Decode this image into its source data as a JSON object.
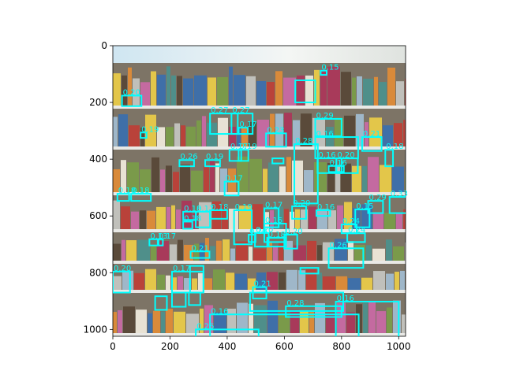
{
  "chart_data": {
    "type": "image-detections",
    "title": "",
    "xlabel": "",
    "ylabel": "",
    "image": {
      "width": 1024,
      "height": 1024,
      "subject": "supermarket shelves with packaged products"
    },
    "xlim": [
      0,
      1024
    ],
    "ylim": [
      1024,
      0
    ],
    "x_ticks": [
      0,
      200,
      400,
      600,
      800,
      1000
    ],
    "y_ticks": [
      0,
      200,
      400,
      600,
      800,
      1000
    ],
    "box_color": "#00ffff",
    "boxes": [
      {
        "x1": 638,
        "y1": 122,
        "x2": 708,
        "y2": 200,
        "label": ""
      },
      {
        "x1": 727,
        "y1": 88,
        "x2": 748,
        "y2": 103,
        "label": "0.15"
      },
      {
        "x1": 32,
        "y1": 176,
        "x2": 100,
        "y2": 213,
        "label": "0.20"
      },
      {
        "x1": 340,
        "y1": 239,
        "x2": 437,
        "y2": 311,
        "label": "0.27"
      },
      {
        "x1": 415,
        "y1": 239,
        "x2": 489,
        "y2": 311,
        "label": "0.27"
      },
      {
        "x1": 97,
        "y1": 306,
        "x2": 118,
        "y2": 325,
        "label": "0.19"
      },
      {
        "x1": 708,
        "y1": 258,
        "x2": 800,
        "y2": 319,
        "label": "0.29"
      },
      {
        "x1": 440,
        "y1": 289,
        "x2": 472,
        "y2": 311,
        "label": "0.17"
      },
      {
        "x1": 536,
        "y1": 309,
        "x2": 606,
        "y2": 356,
        "label": "0.23"
      },
      {
        "x1": 708,
        "y1": 322,
        "x2": 858,
        "y2": 397,
        "label": "0.16"
      },
      {
        "x1": 872,
        "y1": 322,
        "x2": 940,
        "y2": 371,
        "label": "0.21"
      },
      {
        "x1": 408,
        "y1": 367,
        "x2": 449,
        "y2": 406,
        "label": "0.17"
      },
      {
        "x1": 440,
        "y1": 367,
        "x2": 474,
        "y2": 406,
        "label": "0.19"
      },
      {
        "x1": 635,
        "y1": 347,
        "x2": 717,
        "y2": 556,
        "label": "0.28"
      },
      {
        "x1": 953,
        "y1": 367,
        "x2": 980,
        "y2": 425,
        "label": "0.18"
      },
      {
        "x1": 233,
        "y1": 403,
        "x2": 284,
        "y2": 425,
        "label": "0.26"
      },
      {
        "x1": 323,
        "y1": 403,
        "x2": 375,
        "y2": 425,
        "label": "0.19"
      },
      {
        "x1": 558,
        "y1": 397,
        "x2": 597,
        "y2": 415,
        "label": ""
      },
      {
        "x1": 716,
        "y1": 397,
        "x2": 800,
        "y2": 449,
        "label": "0.16"
      },
      {
        "x1": 782,
        "y1": 397,
        "x2": 857,
        "y2": 449,
        "label": "0.20"
      },
      {
        "x1": 755,
        "y1": 424,
        "x2": 808,
        "y2": 445,
        "label": "0.16"
      },
      {
        "x1": 391,
        "y1": 479,
        "x2": 440,
        "y2": 528,
        "label": "0.17"
      },
      {
        "x1": 16,
        "y1": 522,
        "x2": 57,
        "y2": 547,
        "label": "0.18"
      },
      {
        "x1": 64,
        "y1": 522,
        "x2": 133,
        "y2": 547,
        "label": "0.18"
      },
      {
        "x1": 968,
        "y1": 533,
        "x2": 1030,
        "y2": 590,
        "label": "0.33"
      },
      {
        "x1": 893,
        "y1": 547,
        "x2": 945,
        "y2": 590,
        "label": "0.29"
      },
      {
        "x1": 246,
        "y1": 585,
        "x2": 291,
        "y2": 614,
        "label": "0.18"
      },
      {
        "x1": 290,
        "y1": 585,
        "x2": 340,
        "y2": 640,
        "label": "0.17"
      },
      {
        "x1": 340,
        "y1": 580,
        "x2": 400,
        "y2": 610,
        "label": "0.18"
      },
      {
        "x1": 424,
        "y1": 580,
        "x2": 486,
        "y2": 700,
        "label": "0.19"
      },
      {
        "x1": 530,
        "y1": 573,
        "x2": 580,
        "y2": 640,
        "label": "0.17"
      },
      {
        "x1": 627,
        "y1": 566,
        "x2": 676,
        "y2": 610,
        "label": "0.20"
      },
      {
        "x1": 712,
        "y1": 580,
        "x2": 760,
        "y2": 600,
        "label": "0.16"
      },
      {
        "x1": 848,
        "y1": 577,
        "x2": 898,
        "y2": 640,
        "label": "0.15"
      },
      {
        "x1": 246,
        "y1": 620,
        "x2": 278,
        "y2": 645,
        "label": "0.18"
      },
      {
        "x1": 475,
        "y1": 666,
        "x2": 499,
        "y2": 692,
        "label": "0.20"
      },
      {
        "x1": 497,
        "y1": 660,
        "x2": 545,
        "y2": 708,
        "label": "0.20"
      },
      {
        "x1": 530,
        "y1": 627,
        "x2": 606,
        "y2": 692,
        "label": "0.15"
      },
      {
        "x1": 540,
        "y1": 677,
        "x2": 606,
        "y2": 708,
        "label": "0.18"
      },
      {
        "x1": 600,
        "y1": 666,
        "x2": 645,
        "y2": 715,
        "label": "0.20"
      },
      {
        "x1": 800,
        "y1": 630,
        "x2": 853,
        "y2": 661,
        "label": "0.24"
      },
      {
        "x1": 820,
        "y1": 661,
        "x2": 882,
        "y2": 692,
        "label": "0.24"
      },
      {
        "x1": 128,
        "y1": 682,
        "x2": 160,
        "y2": 704,
        "label": "0.13"
      },
      {
        "x1": 157,
        "y1": 682,
        "x2": 175,
        "y2": 704,
        "label": "0.17"
      },
      {
        "x1": 272,
        "y1": 725,
        "x2": 338,
        "y2": 748,
        "label": "0.21"
      },
      {
        "x1": 755,
        "y1": 714,
        "x2": 876,
        "y2": 783,
        "label": "0.26"
      },
      {
        "x1": 656,
        "y1": 783,
        "x2": 719,
        "y2": 803,
        "label": ""
      },
      {
        "x1": 0,
        "y1": 796,
        "x2": 60,
        "y2": 870,
        "label": "0.20"
      },
      {
        "x1": 207,
        "y1": 796,
        "x2": 317,
        "y2": 870,
        "label": "0.17"
      },
      {
        "x1": 270,
        "y1": 776,
        "x2": 317,
        "y2": 870,
        "label": ""
      },
      {
        "x1": 490,
        "y1": 851,
        "x2": 537,
        "y2": 891,
        "label": "0.21"
      },
      {
        "x1": 480,
        "y1": 870,
        "x2": 806,
        "y2": 935,
        "label": ""
      },
      {
        "x1": 148,
        "y1": 883,
        "x2": 189,
        "y2": 931,
        "label": ""
      },
      {
        "x1": 207,
        "y1": 870,
        "x2": 255,
        "y2": 920,
        "label": ""
      },
      {
        "x1": 266,
        "y1": 870,
        "x2": 306,
        "y2": 914,
        "label": ""
      },
      {
        "x1": 605,
        "y1": 918,
        "x2": 800,
        "y2": 956,
        "label": "0.28"
      },
      {
        "x1": 780,
        "y1": 902,
        "x2": 1000,
        "y2": 1030,
        "label": "0.16"
      },
      {
        "x1": 340,
        "y1": 947,
        "x2": 860,
        "y2": 1030,
        "label": "0.16"
      },
      {
        "x1": 290,
        "y1": 1000,
        "x2": 510,
        "y2": 1030,
        "label": "0.26"
      }
    ]
  }
}
